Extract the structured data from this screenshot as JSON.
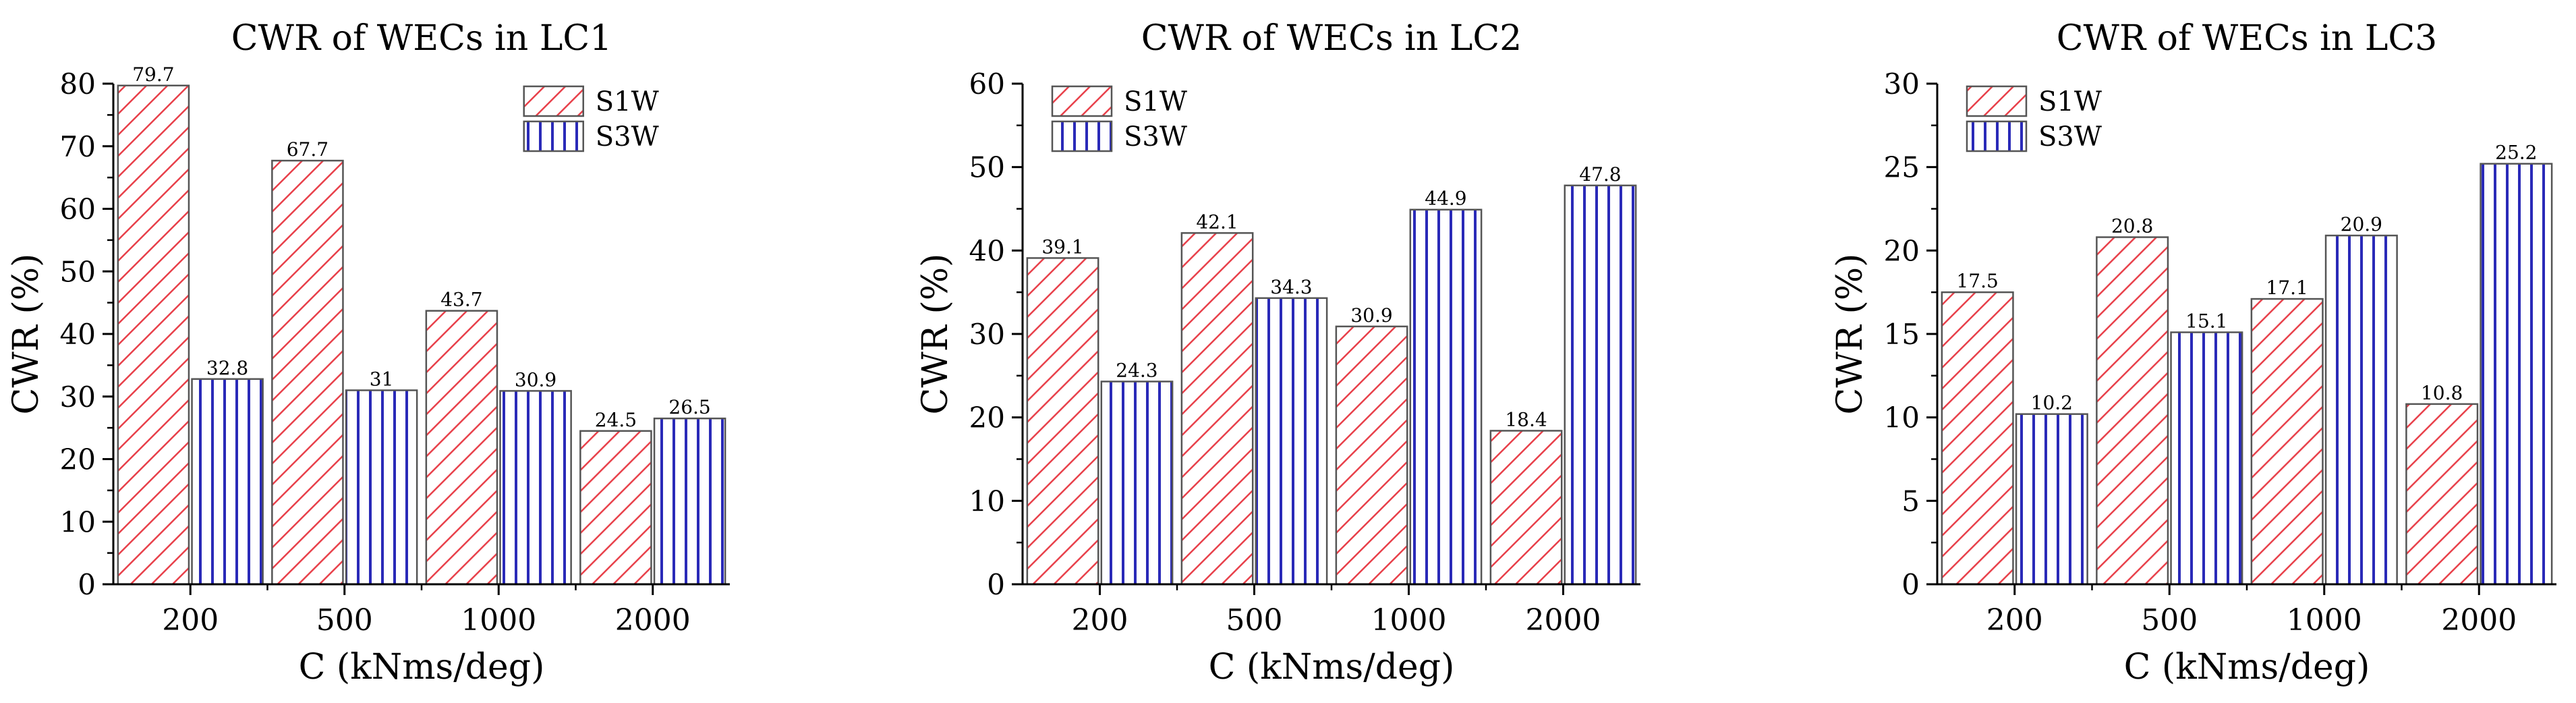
{
  "figure": {
    "colors": {
      "s1w": "#e8404a",
      "s3w": "#2a2ab8",
      "axis": "#000000",
      "bar_edge": "#555555"
    }
  },
  "chart_data": [
    {
      "type": "bar",
      "title": "CWR of WECs in LC1",
      "xlabel": "C (kNms/deg)",
      "ylabel": "CWR (%)",
      "categories": [
        "200",
        "500",
        "1000",
        "2000"
      ],
      "ylim": [
        0,
        80
      ],
      "yticks": [
        0,
        10,
        20,
        30,
        40,
        50,
        60,
        70,
        80
      ],
      "legend_position": "top-right",
      "series": [
        {
          "name": "S1W",
          "pattern": "diagonal-hatch",
          "values": [
            79.7,
            67.7,
            43.7,
            24.5
          ],
          "labels": [
            "79.7",
            "67.7",
            "43.7",
            "24.5"
          ]
        },
        {
          "name": "S3W",
          "pattern": "vertical-hatch",
          "values": [
            32.8,
            31,
            30.9,
            26.5
          ],
          "labels": [
            "32.8",
            "31",
            "30.9",
            "26.5"
          ]
        }
      ]
    },
    {
      "type": "bar",
      "title": "CWR of WECs in LC2",
      "xlabel": "C (kNms/deg)",
      "ylabel": "CWR (%)",
      "categories": [
        "200",
        "500",
        "1000",
        "2000"
      ],
      "ylim": [
        0,
        60
      ],
      "yticks": [
        0,
        10,
        20,
        30,
        40,
        50,
        60
      ],
      "legend_position": "top-left",
      "series": [
        {
          "name": "S1W",
          "pattern": "diagonal-hatch",
          "values": [
            39.1,
            42.1,
            30.9,
            18.4
          ],
          "labels": [
            "39.1",
            "42.1",
            "30.9",
            "18.4"
          ]
        },
        {
          "name": "S3W",
          "pattern": "vertical-hatch",
          "values": [
            24.3,
            34.3,
            44.9,
            47.8
          ],
          "labels": [
            "24.3",
            "34.3",
            "44.9",
            "47.8"
          ]
        }
      ]
    },
    {
      "type": "bar",
      "title": "CWR of WECs in LC3",
      "xlabel": "C (kNms/deg)",
      "ylabel": "CWR (%)",
      "categories": [
        "200",
        "500",
        "1000",
        "2000"
      ],
      "ylim": [
        0,
        30
      ],
      "yticks": [
        0,
        5,
        10,
        15,
        20,
        25,
        30
      ],
      "legend_position": "top-left",
      "series": [
        {
          "name": "S1W",
          "pattern": "diagonal-hatch",
          "values": [
            17.5,
            20.8,
            17.1,
            10.8
          ],
          "labels": [
            "17.5",
            "20.8",
            "17.1",
            "10.8"
          ]
        },
        {
          "name": "S3W",
          "pattern": "vertical-hatch",
          "values": [
            10.2,
            15.1,
            20.9,
            25.2
          ],
          "labels": [
            "10.2",
            "15.1",
            "20.9",
            "25.2"
          ]
        }
      ]
    }
  ]
}
